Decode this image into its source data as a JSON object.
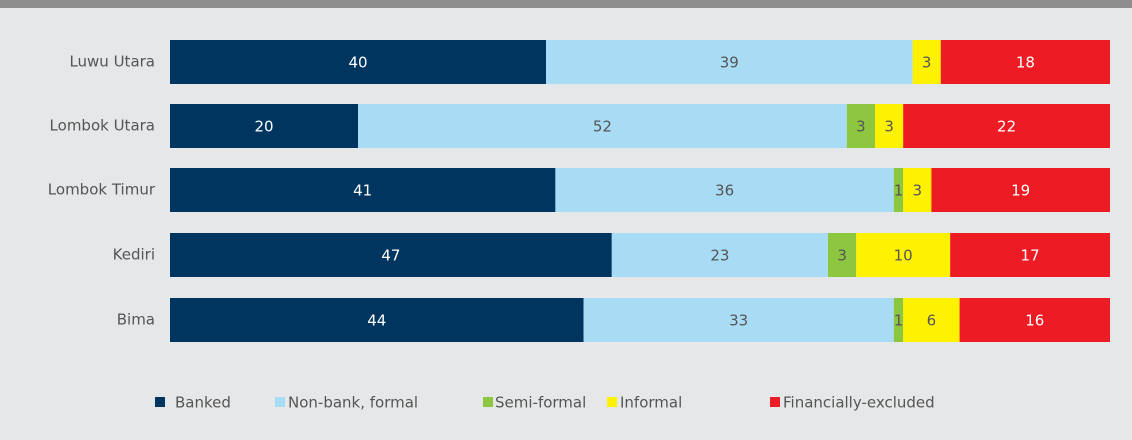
{
  "chart_data": {
    "type": "stacked_bar_horizontal",
    "categories": [
      "Luwu Utara",
      "Lombok Utara",
      "Lombok Timur",
      "Kediri",
      "Bima"
    ],
    "xlim": [
      0,
      100
    ],
    "series": [
      {
        "name": "Banked",
        "color": "#003560",
        "values": [
          40,
          20,
          41,
          47,
          44
        ]
      },
      {
        "name": "Non-bank, formal",
        "color": "#a8dcf5",
        "values": [
          39,
          52,
          36,
          23,
          33
        ]
      },
      {
        "name": "Semi-formal",
        "color": "#8dc63f",
        "values": [
          null,
          3,
          1,
          3,
          1
        ]
      },
      {
        "name": "Informal",
        "color": "#fff200",
        "values": [
          3,
          3,
          3,
          10,
          6
        ]
      },
      {
        "name": "Financially-excluded",
        "color": "#ed1c24",
        "values": [
          18,
          22,
          19,
          17,
          16
        ]
      }
    ],
    "legend": "bottom"
  }
}
